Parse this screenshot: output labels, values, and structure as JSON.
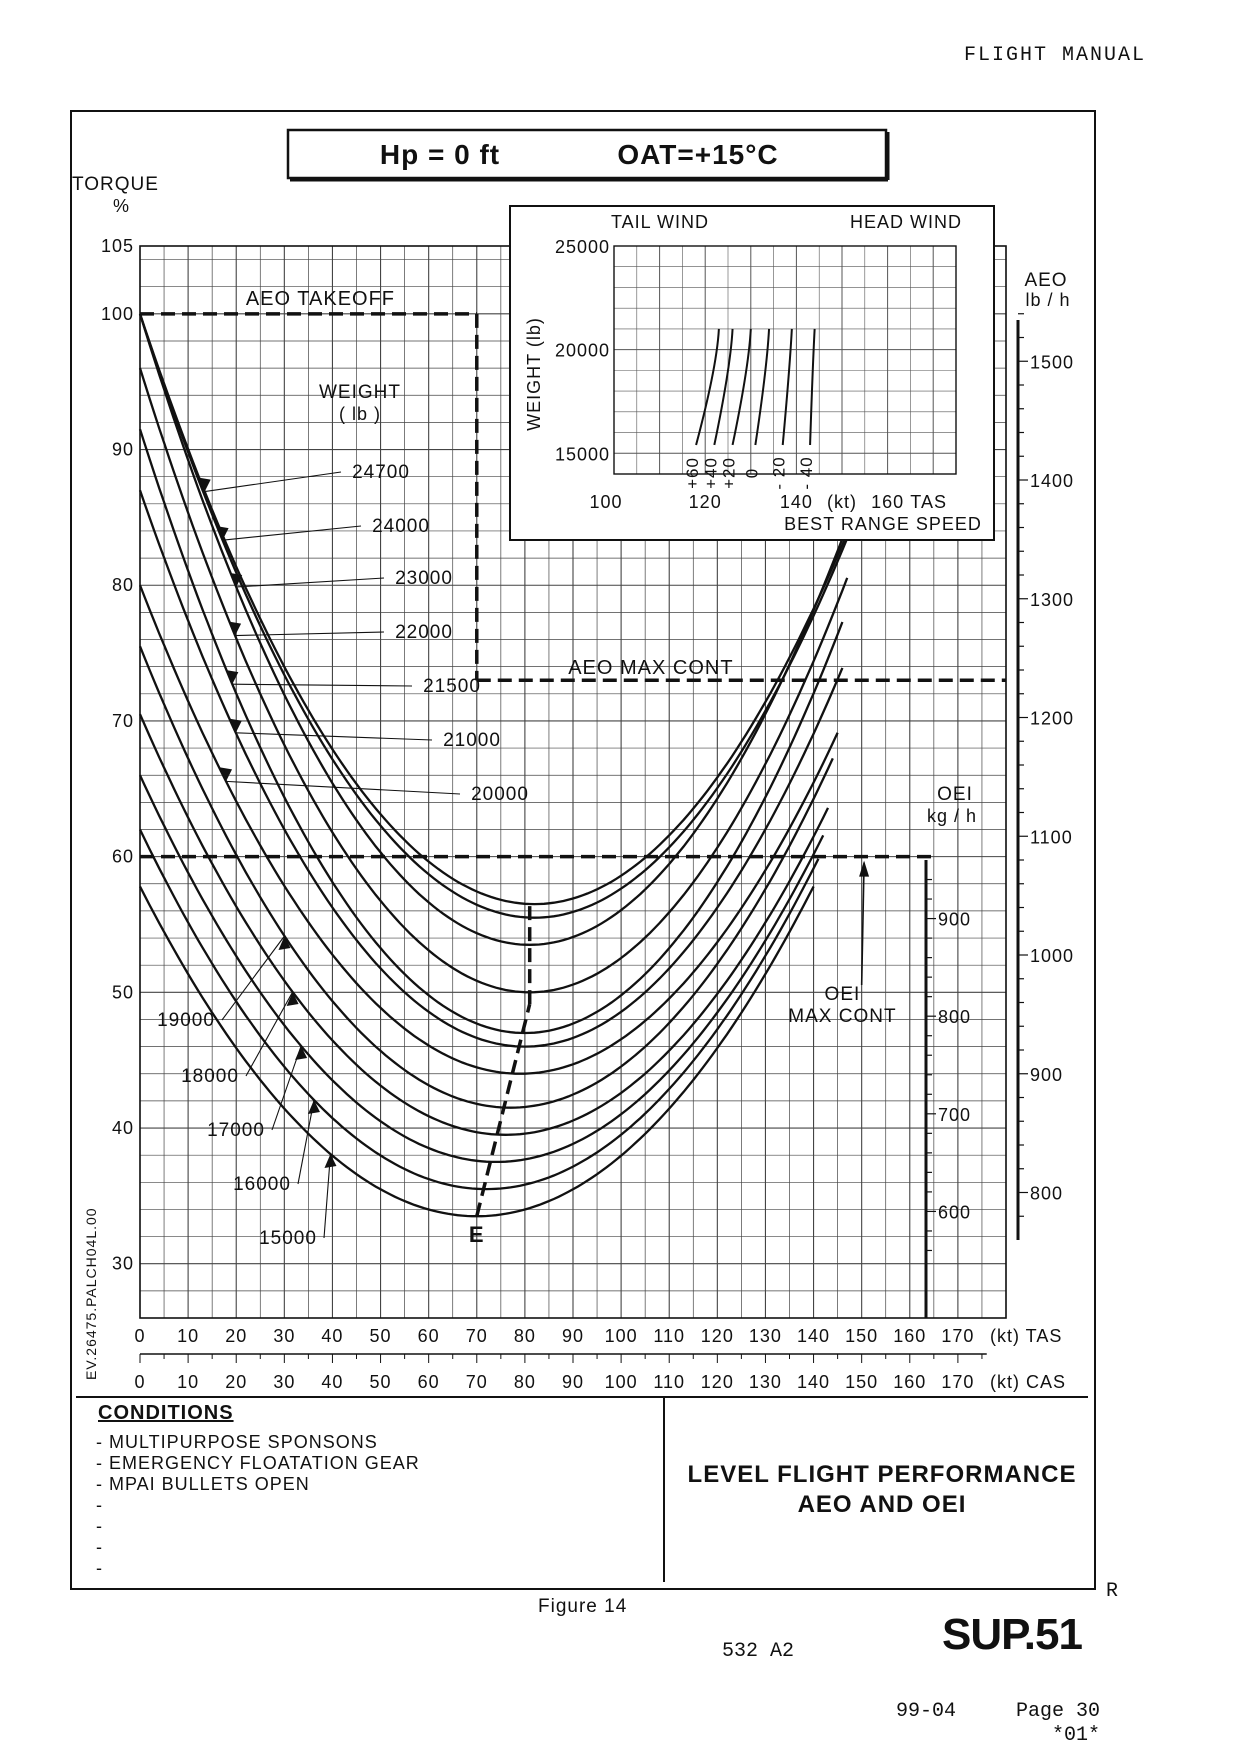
{
  "header": {
    "title": "FLIGHT MANUAL"
  },
  "chart_data": {
    "type": "line",
    "banner": {
      "hp": "Hp = 0 ft",
      "oat": "OAT=+15°C"
    },
    "ylabel": "TORQUE",
    "yunit": "%",
    "ylim": [
      26,
      105
    ],
    "yticks": [
      30,
      40,
      50,
      60,
      70,
      80,
      90,
      100,
      105
    ],
    "xlim": [
      0,
      180
    ],
    "xticks": [
      0,
      10,
      20,
      30,
      40,
      50,
      60,
      70,
      80,
      90,
      100,
      110,
      120,
      130,
      140,
      150,
      160,
      170
    ],
    "xlabel_tas": "(kt) TAS",
    "xlabel_cas": "(kt) CAS",
    "cas_ticks": [
      0,
      10,
      20,
      30,
      40,
      50,
      60,
      70,
      80,
      90,
      100,
      110,
      120,
      130,
      140,
      150,
      160,
      170
    ],
    "weight_title": "WEIGHT",
    "weight_unit": "( lb )",
    "series": [
      {
        "name": "15000",
        "weight": 15000,
        "min_x": 70,
        "min_y": 33.5,
        "start_y": 57.8,
        "end_x": 140
      },
      {
        "name": "16000",
        "weight": 16000,
        "min_x": 72,
        "min_y": 35.5,
        "start_y": 62.0,
        "end_x": 141
      },
      {
        "name": "17000",
        "weight": 17000,
        "min_x": 74,
        "min_y": 37.5,
        "start_y": 66.0,
        "end_x": 142
      },
      {
        "name": "18000",
        "weight": 18000,
        "min_x": 76,
        "min_y": 39.5,
        "start_y": 70.5,
        "end_x": 143
      },
      {
        "name": "19000",
        "weight": 19000,
        "min_x": 77,
        "min_y": 41.5,
        "start_y": 75.5,
        "end_x": 144
      },
      {
        "name": "20000",
        "weight": 20000,
        "min_x": 79,
        "min_y": 44.0,
        "start_y": 80.0,
        "end_x": 145
      },
      {
        "name": "21000",
        "weight": 21000,
        "min_x": 80,
        "min_y": 46.0,
        "start_y": 87.0,
        "end_x": 146
      },
      {
        "name": "21500",
        "weight": 21500,
        "min_x": 80,
        "min_y": 47.0,
        "start_y": 91.5,
        "end_x": 146.5
      },
      {
        "name": "22000",
        "weight": 22000,
        "min_x": 81,
        "min_y": 50.0,
        "start_y": 96.0,
        "end_x": 147
      },
      {
        "name": "23000",
        "weight": 23000,
        "min_x": 81,
        "min_y": 53.5,
        "start_y": 100,
        "end_x": 148
      },
      {
        "name": "24000",
        "weight": 24000,
        "min_x": 82,
        "min_y": 55.5,
        "start_y": 100,
        "end_x": 149
      },
      {
        "name": "24700",
        "weight": 24700,
        "min_x": 82,
        "min_y": 56.5,
        "start_y": 100,
        "end_x": 150
      }
    ],
    "limits": [
      {
        "name": "AEO TAKEOFF",
        "y": 100,
        "x_end": 70
      },
      {
        "name": "AEO MAX CONT",
        "y": 73,
        "x_start": 70
      },
      {
        "name": "OEI MAX CONT",
        "y": 60
      }
    ],
    "oei_label": "OEI\nMAX CONT",
    "endurance_point": "E",
    "aeo_scale": {
      "title": "AEO",
      "unit": "lb / h",
      "ticks": [
        800,
        900,
        1000,
        1100,
        1200,
        1300,
        1400,
        1500
      ]
    },
    "oei_scale": {
      "title": "OEI",
      "unit": "kg / h",
      "ticks": [
        600,
        700,
        800,
        900
      ]
    },
    "inset": {
      "type": "line",
      "left_label": "TAIL WIND",
      "right_label": "HEAD WIND",
      "ylabel": "WEIGHT  (lb)",
      "yticks": [
        15000,
        20000,
        25000
      ],
      "ylim": [
        14000,
        25000
      ],
      "xlim": [
        100,
        175
      ],
      "xticks": [
        100,
        120,
        140,
        160
      ],
      "xlabel": "(kt)",
      "x_unit_tas": "TAS",
      "subtitle": "BEST RANGE SPEED",
      "series": [
        {
          "name": "+60",
          "x_bottom": 118,
          "x_top": 123
        },
        {
          "name": "+40",
          "x_bottom": 122,
          "x_top": 126
        },
        {
          "name": "+20",
          "x_bottom": 126,
          "x_top": 130
        },
        {
          "name": "0",
          "x_bottom": 131,
          "x_top": 134
        },
        {
          "name": "- 20",
          "x_bottom": 137,
          "x_top": 139
        },
        {
          "name": "- 40",
          "x_bottom": 143,
          "x_top": 144
        }
      ]
    }
  },
  "side_code": "EV.26475.PALCH04L.00",
  "conditions": {
    "title": "CONDITIONS",
    "items": [
      "- MULTIPURPOSE SPONSONS",
      "- EMERGENCY FLOATATION GEAR",
      "- MPAI BULLETS OPEN",
      "-",
      "-",
      "-",
      "-"
    ]
  },
  "perf_title": [
    "LEVEL FLIGHT PERFORMANCE",
    "AEO AND OEI"
  ],
  "figure_label": "Figure 14",
  "footer": {
    "revision": "R",
    "model": "532 A2",
    "section": "SUP.51",
    "date": "99-04",
    "page": "Page 30",
    "page_code": "*01*"
  }
}
